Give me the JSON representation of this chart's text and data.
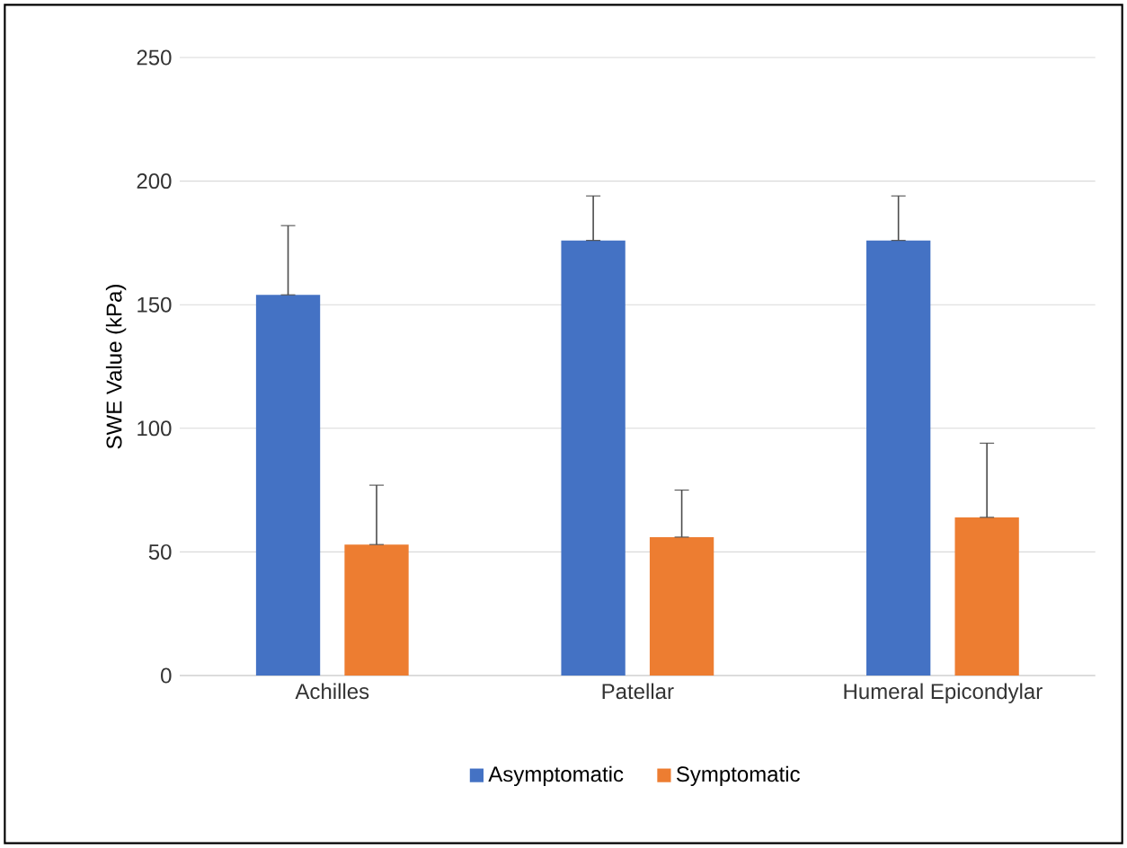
{
  "chart_data": {
    "type": "bar",
    "ylabel": "SWE Value (kPa)",
    "categories": [
      "Achilles",
      "Patellar",
      "Humeral Epicondylar"
    ],
    "series": [
      {
        "name": "Asymptomatic",
        "color": "#4472c4",
        "values": [
          154,
          176,
          176
        ],
        "errors": [
          [
            154,
            182
          ],
          [
            176,
            194
          ],
          [
            176,
            194
          ]
        ]
      },
      {
        "name": "Symptomatic",
        "color": "#ed7d31",
        "values": [
          53,
          56,
          64
        ],
        "errors": [
          [
            53,
            77
          ],
          [
            56,
            75
          ],
          [
            64,
            94
          ]
        ]
      }
    ],
    "ylim": [
      0,
      250
    ],
    "yticks": [
      0,
      50,
      100,
      150,
      200,
      250
    ],
    "grid": "y",
    "legend": "bottom"
  }
}
